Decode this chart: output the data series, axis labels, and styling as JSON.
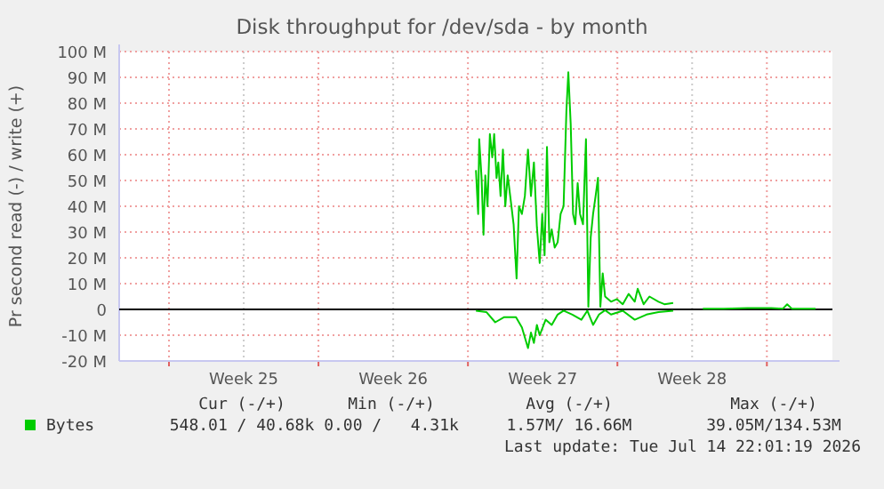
{
  "chart_data": {
    "type": "line",
    "title": "Disk throughput for /dev/sda - by month",
    "ylabel": "Pr second read (-) / write (+)",
    "xlim": [
      "2026-06-12T16:00",
      "2026-07-16T01:40"
    ],
    "xticks": [
      {
        "value": "2026-06-15T00:00",
        "label": null
      },
      {
        "value": "2026-06-18T12:00",
        "label": "Week 25"
      },
      {
        "value": "2026-06-22T00:00",
        "label": null
      },
      {
        "value": "2026-06-25T12:00",
        "label": "Week 26"
      },
      {
        "value": "2026-06-29T00:00",
        "label": null
      },
      {
        "value": "2026-07-02T12:00",
        "label": "Week 27"
      },
      {
        "value": "2026-07-06T00:00",
        "label": null
      },
      {
        "value": "2026-07-09T12:00",
        "label": "Week 28"
      },
      {
        "value": "2026-07-13T00:00",
        "label": null
      }
    ],
    "ylim": [
      -20,
      100
    ],
    "yticks": [
      {
        "value": -20,
        "label": "-20 M"
      },
      {
        "value": -10,
        "label": "-10 M"
      },
      0,
      {
        "value": 10,
        "label": "10 M"
      },
      {
        "value": 20,
        "label": "20 M"
      },
      {
        "value": 30,
        "label": "30 M"
      },
      {
        "value": 40,
        "label": "40 M"
      },
      {
        "value": 50,
        "label": "50 M"
      },
      {
        "value": 60,
        "label": "60 M"
      },
      {
        "value": 70,
        "label": "70 M"
      },
      {
        "value": 80,
        "label": "80 M"
      },
      {
        "value": 90,
        "label": "90 M"
      },
      {
        "value": 100,
        "label": "100 M"
      }
    ],
    "grid": true,
    "legend": "bottom left",
    "marker": "none",
    "line_style": "solid",
    "ref_lines": [
      {
        "axis": "y",
        "value": 0,
        "color": "#000000"
      }
    ],
    "series": [
      {
        "name": "Bytes",
        "color": "#00cc00",
        "x": [
          "2026-06-29T09:00",
          "2026-06-29T11:30",
          "2026-06-29T12:40",
          "2026-06-29T15:20",
          "2026-06-29T17:30",
          "2026-06-29T19:30",
          "2026-06-29T22:00",
          "2026-06-30T00:40",
          "2026-06-30T03:20",
          "2026-06-30T05:30",
          "2026-06-30T08:10",
          "2026-06-30T10:10",
          "2026-06-30T12:40",
          "2026-06-30T15:20",
          "2026-06-30T18:00",
          "2026-06-30T20:40",
          "2026-06-30T23:30",
          "2026-07-01T03:20",
          "2026-07-01T06:40",
          "2026-07-01T09:20",
          "2026-07-01T12:40",
          "2026-07-01T16:00",
          "2026-07-01T19:30",
          "2026-07-01T22:50",
          "2026-07-02T02:10",
          "2026-07-02T05:30",
          "2026-07-02T08:40",
          "2026-07-02T11:30",
          "2026-07-02T14:10",
          "2026-07-02T16:50",
          "2026-07-02T19:30",
          "2026-07-02T22:10",
          "2026-07-03T01:30",
          "2026-07-03T04:50",
          "2026-07-03T08:10",
          "2026-07-03T11:30",
          "2026-07-03T14:40",
          "2026-07-03T16:50",
          "2026-07-03T19:30",
          "2026-07-03T22:10",
          "2026-07-04T00:40",
          "2026-07-04T03:20",
          "2026-07-04T06:00",
          "2026-07-04T09:20",
          "2026-07-04T12:40",
          "2026-07-04T15:20",
          "2026-07-04T18:00",
          "2026-07-04T20:40",
          "2026-07-04T23:30",
          "2026-07-05T02:10",
          "2026-07-05T04:50",
          "2026-07-05T07:30",
          "2026-07-05T10:10",
          "2026-07-05T16:50",
          "2026-07-05T23:30",
          "2026-07-06T06:00",
          "2026-07-06T12:40",
          "2026-07-06T19:30",
          "2026-07-06T22:50",
          "2026-07-07T05:30",
          "2026-07-07T12:00",
          "2026-07-07T22:10",
          "2026-07-08T04:50",
          "2026-07-08T14:40",
          "2026-07-09T04:00",
          "2026-07-10T00:00",
          "2026-07-10T23:30",
          "2026-07-12T02:10",
          "2026-07-13T04:50",
          "2026-07-13T18:00",
          "2026-07-13T22:50",
          "2026-07-14T04:00",
          "2026-07-15T06:40"
        ],
        "values": [
          54,
          37,
          66,
          51,
          29,
          52,
          40,
          68,
          59,
          68,
          51,
          57,
          44,
          62,
          40,
          52,
          44,
          33,
          12,
          40,
          37,
          44,
          62,
          44,
          57,
          32,
          18,
          37,
          21,
          63,
          26,
          31,
          24,
          26,
          37,
          40,
          77,
          92,
          72,
          37,
          33,
          49,
          37,
          33,
          66,
          1,
          28,
          37,
          44,
          51,
          1,
          14,
          5,
          3,
          4,
          2,
          6,
          3,
          8,
          2,
          5,
          3,
          2,
          2.5,
          null,
          0.3,
          0.3,
          0.5,
          0.5,
          0.3,
          2,
          0.3,
          0.3
        ]
      },
      {
        "color": "#00cc00",
        "x": [
          "2026-06-29T09:00",
          "2026-06-29T20:40",
          "2026-06-30T06:40",
          "2026-06-30T16:50",
          "2026-07-01T06:00",
          "2026-07-01T12:40",
          "2026-07-01T19:30",
          "2026-07-01T22:50",
          "2026-07-02T02:10",
          "2026-07-02T05:30",
          "2026-07-02T08:40",
          "2026-07-02T15:20",
          "2026-07-02T22:10",
          "2026-07-03T04:50",
          "2026-07-03T11:30",
          "2026-07-03T21:20",
          "2026-07-04T07:30",
          "2026-07-04T14:10",
          "2026-07-04T20:40",
          "2026-07-05T03:20",
          "2026-07-05T10:10",
          "2026-07-05T16:50",
          "2026-07-06T06:00",
          "2026-07-06T19:30",
          "2026-07-07T08:40",
          "2026-07-07T22:10",
          "2026-07-08T14:40"
        ],
        "values": [
          -0.5,
          -1,
          -5,
          -3,
          -3,
          -7,
          -15,
          -9,
          -13,
          -6,
          -10,
          -4,
          -6,
          -2,
          -0.5,
          -2,
          -4,
          -0.5,
          -6,
          -2,
          -0.3,
          -2,
          -0.5,
          -4,
          -2,
          -1,
          -0.5
        ]
      }
    ],
    "annotations": [
      "Cur (-/+)",
      "Min (-/+)",
      "Avg (-/+)",
      "Max (-/+)",
      "548.01 / 40.68k",
      "0.00 /   4.31k",
      "1.57M/ 16.66M",
      "39.05M/134.53M",
      "Last update: Tue Jul 14 22:01:19 2026"
    ]
  }
}
